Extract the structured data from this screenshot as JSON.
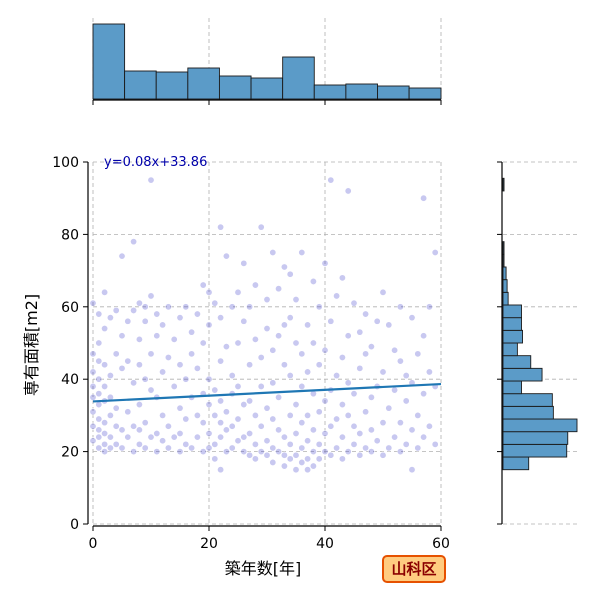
{
  "chart_data": {
    "type": "scatter",
    "xlabel": "築年数[年]",
    "ylabel": "専有面積[m2]",
    "xlim": [
      0,
      60
    ],
    "ylim": [
      0,
      100
    ],
    "x_ticks": [
      0,
      20,
      40,
      60
    ],
    "y_ticks": [
      0,
      20,
      40,
      60,
      80,
      100
    ],
    "grid": true,
    "regression": {
      "label": "y=0.08x+33.86",
      "slope": 0.08,
      "intercept": 33.86,
      "color": "#1f77b4"
    },
    "badge": {
      "text": "山科区",
      "background": "#ffcc80",
      "border": "#e65100",
      "color": "#8b0000"
    },
    "colors": {
      "points": "#3a3ac8",
      "hist_fill": "#5b9bc8",
      "line": "#1f77b4",
      "label": "#0000aa"
    },
    "x_hist": {
      "bin_edges": [
        0,
        5.45,
        10.9,
        16.35,
        21.8,
        27.25,
        32.7,
        38.15,
        43.6,
        49.05,
        54.5,
        60
      ],
      "counts": [
        75,
        28,
        27,
        31,
        23,
        21,
        42,
        14,
        15,
        13,
        11
      ]
    },
    "y_hist": {
      "bin_edges": [
        15,
        18.5,
        22,
        25.5,
        29,
        32.5,
        36,
        39.5,
        43,
        46.5,
        50,
        53.5,
        57,
        60.5,
        64,
        67.5,
        71,
        74.5,
        78,
        81.5,
        85,
        88.5,
        92,
        95.5
      ],
      "counts": [
        25,
        62,
        63,
        72,
        49,
        48,
        18,
        38,
        27,
        14,
        19,
        18,
        18,
        5,
        4,
        3,
        1,
        1,
        0,
        0,
        0,
        0,
        1
      ]
    },
    "points": [
      [
        0,
        23
      ],
      [
        0,
        27
      ],
      [
        0,
        31
      ],
      [
        0,
        35
      ],
      [
        0,
        38
      ],
      [
        0,
        42
      ],
      [
        0,
        47
      ],
      [
        0,
        61
      ],
      [
        1,
        21
      ],
      [
        1,
        24
      ],
      [
        1,
        26
      ],
      [
        1,
        29
      ],
      [
        1,
        33
      ],
      [
        1,
        36
      ],
      [
        1,
        40
      ],
      [
        1,
        45
      ],
      [
        1,
        50
      ],
      [
        1,
        58
      ],
      [
        2,
        20
      ],
      [
        2,
        22
      ],
      [
        2,
        25
      ],
      [
        2,
        28
      ],
      [
        2,
        34
      ],
      [
        2,
        38
      ],
      [
        2,
        44
      ],
      [
        2,
        54
      ],
      [
        2,
        64
      ],
      [
        3,
        21
      ],
      [
        3,
        24
      ],
      [
        3,
        30
      ],
      [
        3,
        35
      ],
      [
        3,
        41
      ],
      [
        3,
        57
      ],
      [
        4,
        22
      ],
      [
        4,
        27
      ],
      [
        4,
        32
      ],
      [
        4,
        47
      ],
      [
        4,
        59
      ],
      [
        5,
        21
      ],
      [
        5,
        26
      ],
      [
        5,
        43
      ],
      [
        5,
        52
      ],
      [
        5,
        74
      ],
      [
        6,
        24
      ],
      [
        6,
        31
      ],
      [
        6,
        45
      ],
      [
        6,
        56
      ],
      [
        7,
        20
      ],
      [
        7,
        27
      ],
      [
        7,
        39
      ],
      [
        7,
        59
      ],
      [
        7,
        78
      ],
      [
        8,
        22
      ],
      [
        8,
        26
      ],
      [
        8,
        33
      ],
      [
        8,
        44
      ],
      [
        8,
        51
      ],
      [
        8,
        61
      ],
      [
        9,
        21
      ],
      [
        9,
        28
      ],
      [
        9,
        40
      ],
      [
        9,
        56
      ],
      [
        9,
        60
      ],
      [
        10,
        24
      ],
      [
        10,
        37
      ],
      [
        10,
        47
      ],
      [
        10,
        63
      ],
      [
        10,
        95
      ],
      [
        11,
        20
      ],
      [
        11,
        25
      ],
      [
        11,
        35
      ],
      [
        11,
        52
      ],
      [
        11,
        58
      ],
      [
        12,
        23
      ],
      [
        12,
        30
      ],
      [
        12,
        42
      ],
      [
        12,
        55
      ],
      [
        13,
        21
      ],
      [
        13,
        27
      ],
      [
        13,
        46
      ],
      [
        13,
        60
      ],
      [
        14,
        24
      ],
      [
        14,
        38
      ],
      [
        14,
        51
      ],
      [
        15,
        20
      ],
      [
        15,
        25
      ],
      [
        15,
        32
      ],
      [
        15,
        44
      ],
      [
        15,
        57
      ],
      [
        16,
        22
      ],
      [
        16,
        29
      ],
      [
        16,
        40
      ],
      [
        16,
        60
      ],
      [
        17,
        21
      ],
      [
        17,
        35
      ],
      [
        17,
        47
      ],
      [
        17,
        53
      ],
      [
        18,
        24
      ],
      [
        18,
        30
      ],
      [
        18,
        43
      ],
      [
        18,
        58
      ],
      [
        19,
        20
      ],
      [
        19,
        28
      ],
      [
        19,
        36
      ],
      [
        19,
        50
      ],
      [
        19,
        66
      ],
      [
        20,
        21
      ],
      [
        20,
        25
      ],
      [
        20,
        33
      ],
      [
        20,
        40
      ],
      [
        20,
        55
      ],
      [
        20,
        64
      ],
      [
        21,
        18
      ],
      [
        21,
        22
      ],
      [
        21,
        30
      ],
      [
        21,
        37
      ],
      [
        21,
        61
      ],
      [
        22,
        15
      ],
      [
        22,
        24
      ],
      [
        22,
        28
      ],
      [
        22,
        34
      ],
      [
        22,
        45
      ],
      [
        22,
        57
      ],
      [
        22,
        82
      ],
      [
        23,
        20
      ],
      [
        23,
        26
      ],
      [
        23,
        31
      ],
      [
        23,
        49
      ],
      [
        23,
        74
      ],
      [
        24,
        21
      ],
      [
        24,
        27
      ],
      [
        24,
        36
      ],
      [
        24,
        41
      ],
      [
        24,
        60
      ],
      [
        25,
        23
      ],
      [
        25,
        29
      ],
      [
        25,
        38
      ],
      [
        25,
        50
      ],
      [
        25,
        64
      ],
      [
        26,
        20
      ],
      [
        26,
        24
      ],
      [
        26,
        33
      ],
      [
        26,
        56
      ],
      [
        26,
        72
      ],
      [
        27,
        19
      ],
      [
        27,
        25
      ],
      [
        27,
        34
      ],
      [
        27,
        44
      ],
      [
        27,
        60
      ],
      [
        28,
        18
      ],
      [
        28,
        22
      ],
      [
        28,
        30
      ],
      [
        28,
        51
      ],
      [
        28,
        66
      ],
      [
        29,
        20
      ],
      [
        29,
        27
      ],
      [
        29,
        38
      ],
      [
        29,
        46
      ],
      [
        29,
        82
      ],
      [
        30,
        19
      ],
      [
        30,
        23
      ],
      [
        30,
        32
      ],
      [
        30,
        54
      ],
      [
        30,
        62
      ],
      [
        31,
        17
      ],
      [
        31,
        21
      ],
      [
        31,
        29
      ],
      [
        31,
        39
      ],
      [
        31,
        48
      ],
      [
        31,
        75
      ],
      [
        32,
        20
      ],
      [
        32,
        26
      ],
      [
        32,
        35
      ],
      [
        32,
        52
      ],
      [
        32,
        65
      ],
      [
        33,
        16
      ],
      [
        33,
        19
      ],
      [
        33,
        24
      ],
      [
        33,
        44
      ],
      [
        33,
        55
      ],
      [
        33,
        71
      ],
      [
        34,
        18
      ],
      [
        34,
        22
      ],
      [
        34,
        30
      ],
      [
        34,
        41
      ],
      [
        34,
        57
      ],
      [
        34,
        69
      ],
      [
        35,
        15
      ],
      [
        35,
        19
      ],
      [
        35,
        25
      ],
      [
        35,
        33
      ],
      [
        35,
        50
      ],
      [
        35,
        62
      ],
      [
        36,
        17
      ],
      [
        36,
        21
      ],
      [
        36,
        28
      ],
      [
        36,
        38
      ],
      [
        36,
        47
      ],
      [
        36,
        75
      ],
      [
        37,
        15
      ],
      [
        37,
        18
      ],
      [
        37,
        23
      ],
      [
        37,
        30
      ],
      [
        37,
        42
      ],
      [
        37,
        55
      ],
      [
        38,
        16
      ],
      [
        38,
        20
      ],
      [
        38,
        26
      ],
      [
        38,
        36
      ],
      [
        38,
        50
      ],
      [
        38,
        67
      ],
      [
        39,
        18
      ],
      [
        39,
        22
      ],
      [
        39,
        31
      ],
      [
        39,
        44
      ],
      [
        39,
        60
      ],
      [
        40,
        20
      ],
      [
        40,
        25
      ],
      [
        40,
        34
      ],
      [
        40,
        48
      ],
      [
        40,
        72
      ],
      [
        41,
        19
      ],
      [
        41,
        27
      ],
      [
        41,
        37
      ],
      [
        41,
        56
      ],
      [
        41,
        95
      ],
      [
        42,
        21
      ],
      [
        42,
        29
      ],
      [
        42,
        41
      ],
      [
        42,
        63
      ],
      [
        43,
        18
      ],
      [
        43,
        24
      ],
      [
        43,
        33
      ],
      [
        43,
        46
      ],
      [
        43,
        68
      ],
      [
        44,
        20
      ],
      [
        44,
        30
      ],
      [
        44,
        39
      ],
      [
        44,
        52
      ],
      [
        44,
        92
      ],
      [
        45,
        22
      ],
      [
        45,
        27
      ],
      [
        45,
        36
      ],
      [
        45,
        61
      ],
      [
        46,
        19
      ],
      [
        46,
        25
      ],
      [
        46,
        43
      ],
      [
        46,
        53
      ],
      [
        47,
        21
      ],
      [
        47,
        31
      ],
      [
        47,
        47
      ],
      [
        47,
        58
      ],
      [
        48,
        20
      ],
      [
        48,
        26
      ],
      [
        48,
        35
      ],
      [
        48,
        49
      ],
      [
        49,
        23
      ],
      [
        49,
        38
      ],
      [
        49,
        56
      ],
      [
        50,
        19
      ],
      [
        50,
        28
      ],
      [
        50,
        42
      ],
      [
        50,
        64
      ],
      [
        51,
        21
      ],
      [
        51,
        32
      ],
      [
        51,
        55
      ],
      [
        52,
        24
      ],
      [
        52,
        37
      ],
      [
        52,
        48
      ],
      [
        53,
        20
      ],
      [
        53,
        28
      ],
      [
        53,
        45
      ],
      [
        53,
        60
      ],
      [
        54,
        22
      ],
      [
        54,
        34
      ],
      [
        54,
        41
      ],
      [
        55,
        15
      ],
      [
        55,
        26
      ],
      [
        55,
        39
      ],
      [
        55,
        57
      ],
      [
        56,
        21
      ],
      [
        56,
        30
      ],
      [
        56,
        47
      ],
      [
        57,
        24
      ],
      [
        57,
        36
      ],
      [
        57,
        52
      ],
      [
        57,
        90
      ],
      [
        58,
        27
      ],
      [
        58,
        42
      ],
      [
        58,
        60
      ],
      [
        59,
        22
      ],
      [
        59,
        38
      ],
      [
        59,
        75
      ]
    ]
  }
}
